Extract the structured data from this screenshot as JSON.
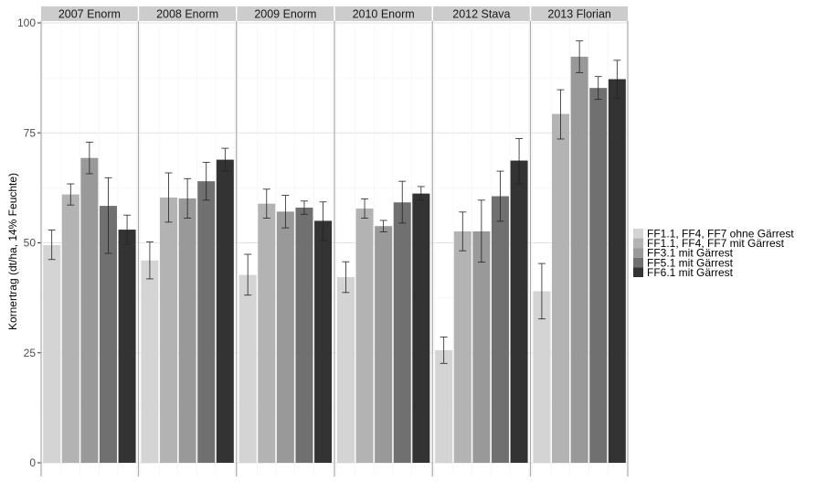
{
  "chart_data": {
    "type": "bar",
    "facets": [
      "2007 Enorm",
      "2008 Enorm",
      "2009 Enorm",
      "2010 Enorm",
      "2012 Stava",
      "2013 Florian"
    ],
    "ylabel": "Kornertrag (dt/ha, 14% Feuchte)",
    "xlabel": "",
    "ylim": [
      0,
      100
    ],
    "yticks": [
      0,
      25,
      50,
      75,
      100
    ],
    "grid": true,
    "legend_position": "right",
    "series": [
      {
        "name": "FF1.1, FF4, FF7 ohne Gärrest",
        "color": "#d4d4d4",
        "values": [
          49.5,
          46.0,
          42.7,
          42.2,
          25.6,
          39.0
        ],
        "err_low": [
          46.2,
          41.8,
          38.1,
          38.7,
          22.6,
          32.7
        ],
        "err_high": [
          52.9,
          50.2,
          47.4,
          45.7,
          28.6,
          45.3
        ]
      },
      {
        "name": "FF1.1, FF4, FF7 mit Gärrest",
        "color": "#b3b3b3",
        "values": [
          61.0,
          60.3,
          58.9,
          57.8,
          52.6,
          79.3
        ],
        "err_low": [
          58.6,
          54.7,
          55.6,
          55.6,
          48.2,
          73.6
        ],
        "err_high": [
          63.4,
          65.9,
          62.2,
          60.0,
          57.0,
          84.8
        ]
      },
      {
        "name": "FF3.1 mit Gärrest",
        "color": "#999999",
        "values": [
          69.3,
          60.1,
          57.1,
          53.8,
          52.6,
          92.3
        ],
        "err_low": [
          65.7,
          55.6,
          53.4,
          52.5,
          45.6,
          88.7
        ],
        "err_high": [
          72.9,
          64.6,
          60.8,
          55.1,
          59.7,
          95.9
        ]
      },
      {
        "name": "FF5.1 mit Gärrest",
        "color": "#707070",
        "values": [
          58.4,
          64.0,
          58.0,
          59.2,
          60.6,
          85.2
        ],
        "err_low": [
          47.6,
          59.7,
          56.5,
          54.5,
          54.9,
          82.6
        ],
        "err_high": [
          64.8,
          68.3,
          59.5,
          64.0,
          66.3,
          87.8
        ]
      },
      {
        "name": "FF6.1 mit Gärrest",
        "color": "#333333",
        "values": [
          53.0,
          68.9,
          55.0,
          61.2,
          68.7,
          87.2
        ],
        "err_low": [
          49.7,
          66.3,
          50.5,
          59.7,
          63.4,
          82.9
        ],
        "err_high": [
          56.3,
          71.5,
          59.3,
          62.8,
          73.7,
          91.5
        ]
      }
    ]
  }
}
